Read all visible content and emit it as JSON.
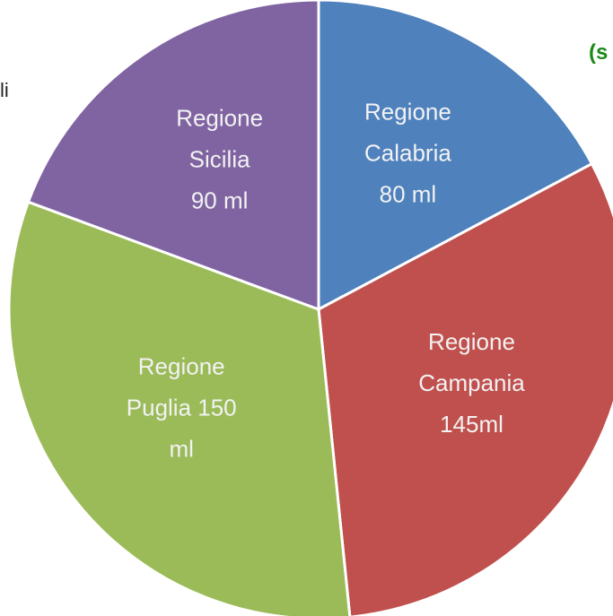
{
  "chart_data": {
    "type": "pie",
    "values": [
      80,
      145,
      150,
      90
    ],
    "value_labels": [
      [
        "Regione",
        "Calabria",
        "80 ml"
      ],
      [
        "Regione",
        "Campania",
        "145ml"
      ],
      [
        "Regione",
        "Puglia 150",
        "ml"
      ],
      [
        "Regione",
        "Sicilia",
        "90 ml"
      ]
    ],
    "colors": [
      "#4f81bd",
      "#c0504d",
      "#9bbb59",
      "#8064a2"
    ],
    "annotations": [
      "li",
      "(s"
    ]
  }
}
